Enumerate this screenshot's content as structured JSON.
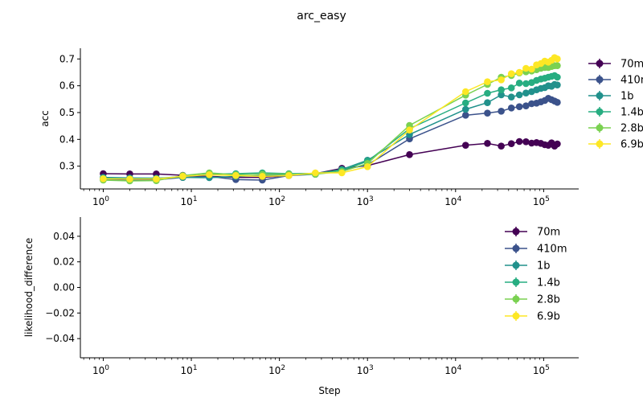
{
  "figure": {
    "title": "arc_easy",
    "xlabel": "Step"
  },
  "chart_data": [
    {
      "type": "line",
      "panel": "top",
      "ylabel": "acc",
      "xscale": "log",
      "xlim": [
        0.55,
        250000
      ],
      "ylim": [
        0.215,
        0.74
      ],
      "yticks": [
        0.3,
        0.4,
        0.5,
        0.6,
        0.7
      ],
      "ytick_labels": [
        "0.3",
        "0.4",
        "0.5",
        "0.6",
        "0.7"
      ],
      "xticks": [
        1,
        10,
        100,
        1000,
        10000,
        100000
      ],
      "xtick_bases": [
        "10",
        "10",
        "10",
        "10",
        "10",
        "10"
      ],
      "xtick_exponents": [
        "0",
        "1",
        "2",
        "3",
        "4",
        "5"
      ],
      "grid": false,
      "legend": "outside-right",
      "series": [
        {
          "name": "70m",
          "color": "#440154",
          "x": [
            1,
            2,
            4,
            8,
            16,
            32,
            64,
            128,
            256,
            512,
            1000,
            3000,
            13000,
            23000,
            33000,
            43000,
            53000,
            63000,
            73000,
            83000,
            93000,
            103000,
            113000,
            123000,
            133000,
            143000
          ],
          "y": [
            0.272,
            0.271,
            0.271,
            0.266,
            0.262,
            0.258,
            0.258,
            0.265,
            0.272,
            0.292,
            0.302,
            0.343,
            0.378,
            0.385,
            0.375,
            0.384,
            0.392,
            0.391,
            0.386,
            0.388,
            0.385,
            0.38,
            0.378,
            0.387,
            0.375,
            0.383
          ]
        },
        {
          "name": "410m",
          "color": "#3b528b",
          "x": [
            1,
            2,
            4,
            8,
            16,
            32,
            64,
            128,
            256,
            512,
            1000,
            3000,
            13000,
            23000,
            33000,
            43000,
            53000,
            63000,
            73000,
            83000,
            93000,
            103000,
            113000,
            123000,
            133000,
            143000
          ],
          "y": [
            0.25,
            0.248,
            0.249,
            0.258,
            0.262,
            0.25,
            0.248,
            0.265,
            0.27,
            0.286,
            0.305,
            0.402,
            0.49,
            0.498,
            0.505,
            0.517,
            0.522,
            0.525,
            0.533,
            0.535,
            0.54,
            0.545,
            0.553,
            0.548,
            0.543,
            0.538
          ]
        },
        {
          "name": "1b",
          "color": "#21918c",
          "x": [
            1,
            2,
            4,
            8,
            16,
            32,
            64,
            128,
            256,
            512,
            1000,
            3000,
            13000,
            23000,
            33000,
            43000,
            53000,
            63000,
            73000,
            83000,
            93000,
            103000,
            113000,
            123000,
            133000,
            143000
          ],
          "y": [
            0.258,
            0.256,
            0.255,
            0.258,
            0.257,
            0.262,
            0.265,
            0.267,
            0.27,
            0.288,
            0.322,
            0.418,
            0.512,
            0.537,
            0.566,
            0.558,
            0.566,
            0.573,
            0.578,
            0.585,
            0.59,
            0.593,
            0.6,
            0.598,
            0.605,
            0.603
          ]
        },
        {
          "name": "1.4b",
          "color": "#27ad81",
          "x": [
            1,
            2,
            4,
            8,
            16,
            32,
            64,
            128,
            256,
            512,
            1000,
            3000,
            13000,
            23000,
            33000,
            43000,
            53000,
            63000,
            73000,
            83000,
            93000,
            103000,
            113000,
            123000,
            133000,
            143000
          ],
          "y": [
            0.255,
            0.253,
            0.254,
            0.262,
            0.27,
            0.272,
            0.275,
            0.272,
            0.273,
            0.285,
            0.318,
            0.44,
            0.536,
            0.572,
            0.585,
            0.592,
            0.61,
            0.608,
            0.612,
            0.62,
            0.625,
            0.628,
            0.632,
            0.635,
            0.638,
            0.632
          ]
        },
        {
          "name": "2.8b",
          "color": "#7ad151",
          "x": [
            1,
            2,
            4,
            8,
            16,
            32,
            64,
            128,
            256,
            512,
            1000,
            3000,
            13000,
            23000,
            33000,
            43000,
            53000,
            63000,
            73000,
            83000,
            93000,
            103000,
            113000,
            123000,
            133000,
            143000
          ],
          "y": [
            0.248,
            0.245,
            0.246,
            0.265,
            0.275,
            0.268,
            0.27,
            0.27,
            0.27,
            0.28,
            0.31,
            0.452,
            0.565,
            0.605,
            0.632,
            0.638,
            0.648,
            0.652,
            0.655,
            0.66,
            0.665,
            0.668,
            0.668,
            0.672,
            0.675,
            0.675
          ]
        },
        {
          "name": "6.9b",
          "color": "#fde725",
          "x": [
            1,
            2,
            4,
            8,
            16,
            32,
            64,
            128,
            256,
            512,
            1000,
            3000,
            13000,
            23000,
            33000,
            43000,
            53000,
            63000,
            73000,
            83000,
            93000,
            103000,
            113000,
            123000,
            133000,
            143000
          ],
          "y": [
            0.253,
            0.252,
            0.252,
            0.262,
            0.268,
            0.265,
            0.262,
            0.265,
            0.275,
            0.275,
            0.298,
            0.435,
            0.578,
            0.615,
            0.622,
            0.645,
            0.65,
            0.665,
            0.662,
            0.678,
            0.683,
            0.692,
            0.688,
            0.695,
            0.705,
            0.7
          ]
        }
      ]
    },
    {
      "type": "line",
      "panel": "bottom",
      "ylabel": "likelihood_difference",
      "xscale": "log",
      "xlim": [
        0.55,
        250000
      ],
      "ylim": [
        -0.055,
        0.055
      ],
      "yticks": [
        -0.04,
        -0.02,
        0.0,
        0.02,
        0.04
      ],
      "ytick_labels": [
        "−0.04",
        "−0.02",
        "0.00",
        "0.02",
        "0.04"
      ],
      "xticks": [
        1,
        10,
        100,
        1000,
        10000,
        100000
      ],
      "xtick_bases": [
        "10",
        "10",
        "10",
        "10",
        "10",
        "10"
      ],
      "xtick_exponents": [
        "0",
        "1",
        "2",
        "3",
        "4",
        "5"
      ],
      "grid": false,
      "legend": "top-right",
      "series": [
        {
          "name": "70m",
          "color": "#440154",
          "x": [],
          "y": []
        },
        {
          "name": "410m",
          "color": "#3b528b",
          "x": [],
          "y": []
        },
        {
          "name": "1b",
          "color": "#21918c",
          "x": [],
          "y": []
        },
        {
          "name": "1.4b",
          "color": "#27ad81",
          "x": [],
          "y": []
        },
        {
          "name": "2.8b",
          "color": "#7ad151",
          "x": [],
          "y": []
        },
        {
          "name": "6.9b",
          "color": "#fde725",
          "x": [],
          "y": []
        }
      ]
    }
  ]
}
